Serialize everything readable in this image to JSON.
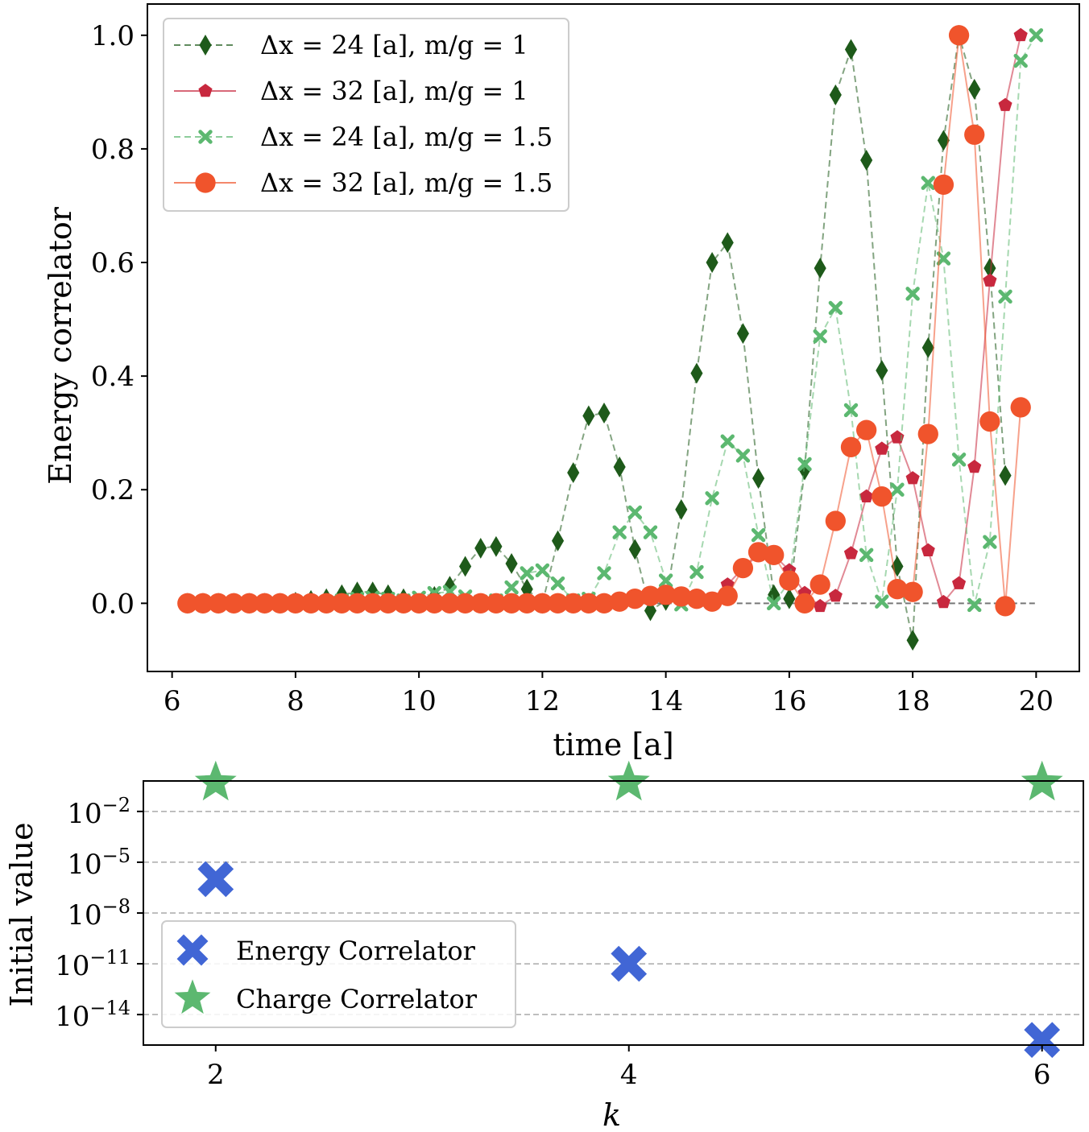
{
  "chart_data": [
    {
      "type": "line",
      "title": "",
      "xlabel": "time [a]",
      "ylabel": "Energy correlator",
      "xlim": [
        5.6,
        20.7
      ],
      "ylim": [
        -0.12,
        1.055
      ],
      "xticks": [
        6,
        8,
        10,
        12,
        14,
        16,
        18,
        20
      ],
      "xtick_labels": [
        "6",
        "8",
        "10",
        "12",
        "14",
        "16",
        "18",
        "20"
      ],
      "yticks": [
        0.0,
        0.2,
        0.4,
        0.6,
        0.8,
        1.0
      ],
      "ytick_labels": [
        "0.0",
        "0.2",
        "0.4",
        "0.6",
        "0.8",
        "1.0"
      ],
      "reference_line": 0.0,
      "legend_position": "top-left",
      "x_start": 6.25,
      "x_step": 0.25,
      "series": [
        {
          "name": "Δx = 24 [a], m/g = 1",
          "color": "#1e5a1a",
          "marker": "diamond",
          "linestyle": "dashed",
          "values": [
            0,
            0,
            0,
            0,
            0,
            0,
            0,
            0.002,
            0.005,
            0.008,
            0.015,
            0.02,
            0.02,
            0.015,
            0.008,
            0,
            0.012,
            0.03,
            0.065,
            0.097,
            0.1,
            0.07,
            0.025,
            0,
            0.11,
            0.23,
            0.33,
            0.335,
            0.24,
            0.095,
            -0.013,
            0.005,
            0.165,
            0.405,
            0.6,
            0.635,
            0.475,
            0.22,
            0.015,
            0.008,
            0.235,
            0.59,
            0.895,
            0.975,
            0.78,
            0.41,
            0.065,
            -0.065,
            0.45,
            0.815,
            1.0,
            0.905,
            0.59,
            0.225
          ]
        },
        {
          "name": "Δx = 32 [a], m/g = 1",
          "color": "#c8283e",
          "marker": "pentagon",
          "linestyle": "solid",
          "values": [
            0,
            0,
            0,
            0,
            0,
            0,
            0,
            0,
            0,
            0,
            0,
            0,
            0,
            0,
            0,
            0,
            0,
            0,
            0,
            0,
            0,
            0,
            0,
            0,
            0,
            0,
            0,
            0.002,
            0.005,
            0.008,
            0.01,
            0.008,
            0.005,
            0.003,
            0.008,
            0.033,
            0.062,
            0.085,
            0.085,
            0.058,
            0.018,
            -0.005,
            0.013,
            0.088,
            0.188,
            0.272,
            0.292,
            0.22,
            0.093,
            0.002,
            0.035,
            0.24,
            0.568,
            0.877,
            1.0
          ]
        },
        {
          "name": "Δx = 24 [a], m/g = 1.5",
          "color": "#5cb870",
          "marker": "x",
          "linestyle": "dashed",
          "values": [
            0,
            0,
            0,
            0,
            0,
            0,
            0,
            0,
            0,
            0.002,
            0.005,
            0.008,
            0.01,
            0.008,
            0.005,
            0.01,
            0.018,
            0.02,
            0.012,
            0.003,
            0.005,
            0.028,
            0.053,
            0.058,
            0.035,
            0.005,
            0.008,
            0.053,
            0.125,
            0.16,
            0.125,
            0.04,
            -0.002,
            0.055,
            0.185,
            0.285,
            0.26,
            0.12,
            0,
            0.038,
            0.245,
            0.47,
            0.52,
            0.34,
            0.085,
            0.003,
            0.2,
            0.545,
            0.74,
            0.607,
            0.253,
            -0.003,
            0.108,
            0.54,
            0.955,
            1.0
          ]
        },
        {
          "name": "Δx = 32 [a], m/g = 1.5",
          "color": "#f0542c",
          "marker": "circle",
          "linestyle": "solid",
          "values": [
            0,
            0,
            0,
            0,
            0,
            0,
            0,
            0,
            0,
            0,
            0,
            0,
            0,
            0,
            0,
            0,
            0,
            0,
            0,
            0,
            0,
            0,
            0,
            0,
            0,
            0,
            0,
            0,
            0.003,
            0.008,
            0.013,
            0.015,
            0.012,
            0.008,
            0.003,
            0.013,
            0.062,
            0.09,
            0.085,
            0.04,
            0,
            0.033,
            0.145,
            0.275,
            0.305,
            0.188,
            0.025,
            0.02,
            0.298,
            0.737,
            1.0,
            0.825,
            0.32,
            -0.005,
            0.345
          ]
        }
      ]
    },
    {
      "type": "scatter",
      "title": "",
      "xlabel": "k",
      "ylabel": "Initial value",
      "yscale": "log",
      "xlim": [
        1.65,
        6.2
      ],
      "ylim_log10": [
        -15.8,
        -0.2
      ],
      "xticks": [
        2,
        4,
        6
      ],
      "xtick_labels": [
        "2",
        "4",
        "6"
      ],
      "yticks_log10": [
        -2,
        -5,
        -8,
        -11,
        -14
      ],
      "ytick_labels": [
        "10",
        "10",
        "10",
        "10",
        "10"
      ],
      "ytick_exponents": [
        "−2",
        "−5",
        "−8",
        "−11",
        "−14"
      ],
      "grid": "horizontal dashed",
      "legend_position": "bottom-left",
      "series": [
        {
          "name": "Energy Correlator",
          "color": "#4166d5",
          "marker": "X",
          "x": [
            2,
            4,
            6
          ],
          "log10_values": [
            -6.0,
            -11.0,
            -15.5
          ]
        },
        {
          "name": "Charge Correlator",
          "color": "#5cb870",
          "marker": "star",
          "x": [
            2,
            4,
            6
          ],
          "log10_values": [
            -0.3,
            -0.3,
            -0.3
          ]
        }
      ]
    }
  ]
}
